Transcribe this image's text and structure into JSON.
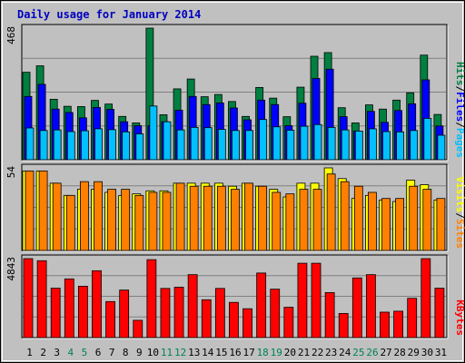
{
  "chart_data": {
    "type": "bar",
    "title": "Daily usage for January 2014",
    "categories": [
      "1",
      "2",
      "3",
      "4",
      "5",
      "6",
      "7",
      "8",
      "9",
      "10",
      "11",
      "12",
      "13",
      "14",
      "15",
      "16",
      "17",
      "18",
      "19",
      "20",
      "21",
      "22",
      "23",
      "24",
      "25",
      "26",
      "27",
      "28",
      "29",
      "30",
      "31"
    ],
    "weekend_days": [
      "4",
      "5",
      "11",
      "12",
      "18",
      "19",
      "25",
      "26"
    ],
    "panels": [
      {
        "id": "hits-files-pages",
        "ymax_label": "468",
        "ymax": 468,
        "labels": [
          {
            "text": "Pages",
            "color": "#00c0ff"
          },
          {
            "text": "Files",
            "color": "#0000ff"
          },
          {
            "text": "Hits",
            "color": "#008040"
          }
        ],
        "series": [
          {
            "name": "Hits",
            "color": "#008040",
            "values": [
              311,
              334,
              215,
              190,
              189,
              211,
              198,
              154,
              131,
              468,
              160,
              252,
              287,
              224,
              232,
              207,
              154,
              257,
              219,
              153,
              258,
              368,
              381,
              185,
              131,
              195,
              180,
              212,
              238,
              372,
              161
            ]
          },
          {
            "name": "Files",
            "color": "#0000ff",
            "values": [
              225,
              268,
              180,
              168,
              149,
              186,
              179,
              135,
              121,
              121,
              135,
              176,
              225,
              196,
              202,
              184,
              142,
              212,
              196,
              121,
              201,
              289,
              322,
              153,
              102,
              172,
              133,
              175,
              199,
              284,
              120
            ]
          },
          {
            "name": "Pages",
            "color": "#00c0ff",
            "values": [
              113,
              104,
              106,
              100,
              103,
              110,
              107,
              99,
              92,
              191,
              135,
              106,
              115,
              114,
              108,
              104,
              104,
              143,
              117,
              105,
              119,
              125,
              115,
              106,
              102,
              110,
              100,
              99,
              104,
              147,
              87
            ]
          }
        ]
      },
      {
        "id": "visits-sites",
        "ymax_label": "54",
        "ymax": 54,
        "labels": [
          {
            "text": "Sites",
            "color": "#ff8000"
          },
          {
            "text": "Visits",
            "color": "#ffff00"
          }
        ],
        "series": [
          {
            "name": "Visits",
            "color": "#ffff00",
            "values": [
              52,
              52,
              44,
              36,
              40,
              40,
              38,
              36,
              37,
              39,
              39,
              44,
              44,
              44,
              44,
              42,
              44,
              42,
              40,
              35,
              44,
              44,
              54,
              47,
              34,
              36,
              33,
              32,
              46,
              43,
              33
            ]
          },
          {
            "name": "Sites",
            "color": "#ff8000",
            "values": [
              52,
              52,
              44,
              36,
              45,
              45,
              40,
              40,
              36,
              38,
              38,
              44,
              42,
              42,
              42,
              40,
              44,
              42,
              38,
              37,
              40,
              40,
              50,
              45,
              42,
              38,
              34,
              34,
              42,
              40,
              34
            ]
          }
        ]
      },
      {
        "id": "kbytes",
        "ymax_label": "4843",
        "ymax": 4843,
        "labels": [
          {
            "text": "KBytes",
            "color": "#ff0000"
          }
        ],
        "series": [
          {
            "name": "KBytes",
            "color": "#ff0000",
            "values": [
              4843,
              4715,
              3030,
              3600,
              3150,
              4100,
              2210,
              2915,
              1060,
              4781,
              3015,
              3090,
              3860,
              2320,
              3015,
              2160,
              1770,
              3960,
              2970,
              1860,
              4560,
              4560,
              2760,
              1480,
              3660,
              3860,
              1560,
              1620,
              2410,
              4843,
              3030
            ]
          }
        ]
      }
    ],
    "grid": true
  }
}
